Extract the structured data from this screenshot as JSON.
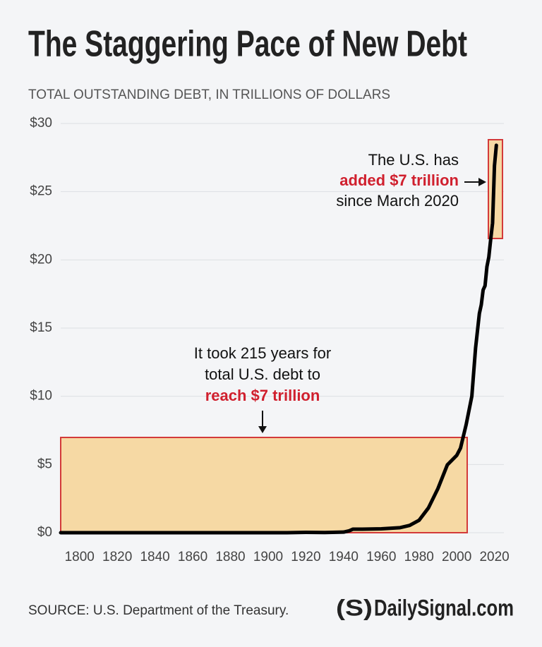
{
  "chart_data": {
    "type": "line",
    "title": "The Staggering Pace of New Debt",
    "subtitle": "TOTAL OUTSTANDING DEBT, IN TRILLIONS OF DOLLARS",
    "x": [
      1790,
      1800,
      1820,
      1840,
      1860,
      1880,
      1900,
      1910,
      1920,
      1930,
      1940,
      1943,
      1945,
      1950,
      1960,
      1970,
      1975,
      1980,
      1985,
      1990,
      1995,
      2000,
      2002,
      2005,
      2008,
      2010,
      2012,
      2013,
      2014,
      2015,
      2016,
      2017,
      2018,
      2019,
      2020,
      2021
    ],
    "values": [
      0.0001,
      0.0001,
      0.0001,
      0.0001,
      0.0001,
      0.002,
      0.002,
      0.003,
      0.024,
      0.016,
      0.043,
      0.14,
      0.26,
      0.257,
      0.286,
      0.371,
      0.533,
      0.908,
      1.82,
      3.23,
      4.97,
      5.67,
      6.2,
      7.93,
      10.0,
      13.56,
      16.07,
      16.7,
      17.8,
      18.1,
      19.5,
      20.2,
      21.5,
      22.7,
      26.9,
      28.4
    ],
    "color": "#000000",
    "xlim": [
      1790,
      2025
    ],
    "xticks": [
      1800,
      1820,
      1840,
      1860,
      1880,
      1900,
      1920,
      1940,
      1960,
      1980,
      2000,
      2020
    ],
    "ylim": [
      0,
      30
    ],
    "yticks": [
      {
        "value": 0,
        "label": "$0"
      },
      {
        "value": 5,
        "label": "$5"
      },
      {
        "value": 10,
        "label": "$10"
      },
      {
        "value": 15,
        "label": "$15"
      },
      {
        "value": 20,
        "label": "$20"
      },
      {
        "value": 25,
        "label": "$25"
      },
      {
        "value": 30,
        "label": "$30"
      }
    ],
    "grid": true,
    "annotations": [
      {
        "lines": [
          "It took 215 years for",
          "total U.S. debt to",
          "reach $7 trillion"
        ]
      },
      {
        "lines": [
          "The U.S. has",
          "added $7 trillion",
          "since March 2020"
        ]
      }
    ],
    "source": "SOURCE: U.S. Department of the Treasury.",
    "logo_mark": "(S)",
    "logo": "DailySignal.com"
  }
}
